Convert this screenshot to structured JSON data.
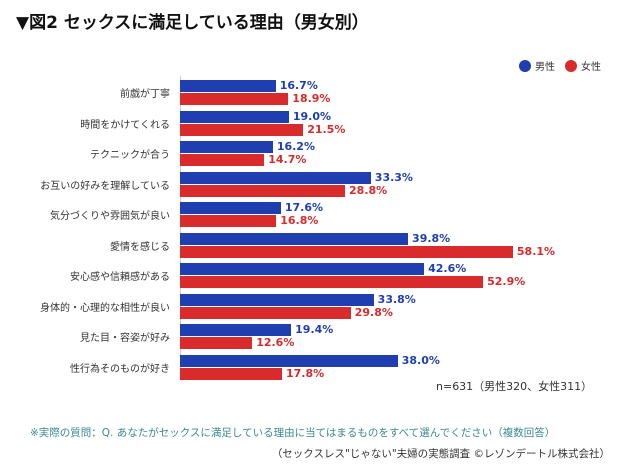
{
  "title": "▼図2 セックスに満足している理由（男女別）",
  "note_n": "n=631（男性320、女性311）",
  "question": "※実際の質問：Q. あなたがセックスに満足している理由に当てはまるものをすべて選んでください（複数回答）",
  "source": "（セックスレス\"じゃない\"夫婦の実態調査 ©レゾンデートル株式会社）",
  "colors": {
    "male": "#1f3fb0",
    "female": "#d92b2b"
  },
  "chart_data": {
    "type": "bar",
    "orientation": "horizontal",
    "unit": "%",
    "legend_position": "top-right",
    "grid": false,
    "categories": [
      "前戯が丁寧",
      "時間をかけてくれる",
      "テクニックが合う",
      "お互いの好みを理解している",
      "気分づくりや雰囲気が良い",
      "愛情を感じる",
      "安心感や信頼感がある",
      "身体的・心理的な相性が良い",
      "見た目・容姿が好み",
      "性行為そのものが好き"
    ],
    "series": [
      {
        "name": "男性",
        "values": [
          16.7,
          19.0,
          16.2,
          33.3,
          17.6,
          39.8,
          42.6,
          33.8,
          19.4,
          38.0
        ]
      },
      {
        "name": "女性",
        "values": [
          18.9,
          21.5,
          14.7,
          28.8,
          16.8,
          58.1,
          52.9,
          29.8,
          12.6,
          17.8
        ]
      }
    ],
    "xlim": [
      0,
      60
    ]
  }
}
